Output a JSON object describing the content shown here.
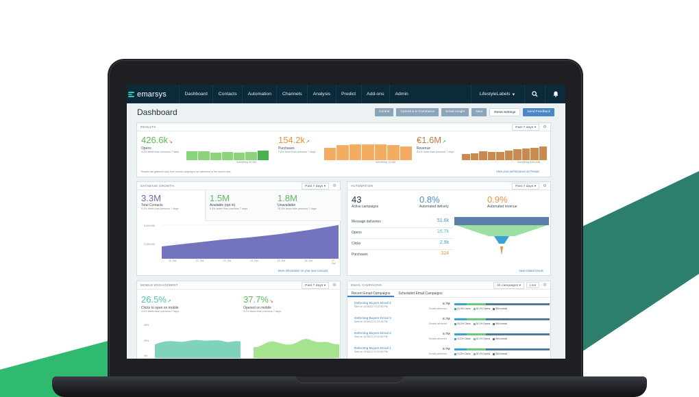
{
  "brand": {
    "name": "emarsys"
  },
  "nav": {
    "items": [
      "Dashboard",
      "Contacts",
      "Automation",
      "Channels",
      "Analysis",
      "Predict",
      "Add-ons",
      "Admin"
    ],
    "account": "LifestyleLabels"
  },
  "page": {
    "title": "Dashboard",
    "buttons": [
      "Central",
      "Central & E-Commerce",
      "Smart Insight",
      "Next",
      "Reset Settings",
      "Send Feedback"
    ]
  },
  "results": {
    "title": "RESULTS",
    "period": "Past 7 days",
    "opens": {
      "value": "426.6k",
      "label": "Opens",
      "sub": "4.2% fewer than previous 7 days",
      "note": "Something 40,284"
    },
    "purchases": {
      "value": "154.2k",
      "label": "Purchases",
      "sub": "7.5% more than previous 7 days",
      "note": "Something 13,438"
    },
    "revenue": {
      "value": "€1.6M",
      "label": "Revenue",
      "sub": "5.0% more than previous 7 days",
      "note": "Something €263,648"
    },
    "footnote": "Results are gathered only from emails campaigns are attributed to the launch date",
    "link": "View your performance as Trends",
    "bars": {
      "opens": [
        0.62,
        0.62,
        0.52,
        0.58,
        0.52,
        0.56,
        0.66
      ],
      "purchases": [
        0.74,
        0.92,
        0.96,
        0.94,
        0.94,
        0.9,
        0.82
      ],
      "revenue": [
        0.44,
        0.5,
        0.62,
        0.56,
        0.56,
        0.66,
        0.76,
        0.82,
        0.84,
        0.96
      ]
    }
  },
  "db_growth": {
    "title": "DATABASE GROWTH",
    "period": "Past 7 days",
    "total": {
      "value": "3.3M",
      "label": "Total Contacts",
      "sub": "5.1% more than previous 7 days"
    },
    "available": {
      "value": "1.5M",
      "label": "Available (opt in)",
      "sub": "9.5% fewer than previous 7 days"
    },
    "unavailable": {
      "value": "1.8M",
      "label": "Unavailable",
      "sub": "15.3% more than previous 7 days"
    },
    "y_ticks": [
      "3,410,000",
      "3,200,000"
    ],
    "x_ticks": [
      "11. Oct",
      "12. Oct",
      "13. Oct",
      "14. Oct",
      "15. Oct",
      "16. Oct",
      "17. Oct"
    ],
    "area_values": [
      0.3,
      0.38,
      0.46,
      0.52,
      0.6,
      0.7,
      0.82
    ],
    "link": "More information on your new contacts"
  },
  "automation": {
    "title": "AUTOMATION",
    "period": "Past 7 days",
    "active": {
      "value": "43",
      "label": "Active campaigns"
    },
    "delivery": {
      "value": "0.8%",
      "label": "Automated delivery"
    },
    "revenue": {
      "value": "0.9%",
      "label": "Automated revenue"
    },
    "funnel": [
      {
        "label": "Message deliveries",
        "value": "51.6k"
      },
      {
        "label": "Opens",
        "value": "16.7k"
      },
      {
        "label": "Clicks",
        "value": "2.9k"
      },
      {
        "label": "Purchases",
        "value": "324"
      }
    ],
    "link": "View related trends"
  },
  "mobile": {
    "title": "MOBILE ENGAGEMENT",
    "period": "Past 7 days",
    "clicks": {
      "value": "26.5%",
      "label": "Clicks to open on mobile",
      "sub": "3.4% fewer than previous 7 days"
    },
    "opened": {
      "value": "37.7%",
      "label": "Opened on mobile",
      "sub": "3.2% fewer than previous 7 days"
    },
    "y_ticks": [
      "40%",
      "20%",
      "0%"
    ]
  },
  "email_campaigns": {
    "title": "EMAIL CAMPAIGNS",
    "filter": "All campaigns",
    "view": "Live",
    "tabs": [
      "Recent Email Campaigns",
      "Scheduled Email Campaigns"
    ],
    "items": [
      {
        "name": "Defecting Buyers Email 4",
        "sent": "Sent on 10/18/12 07:22:55 PM",
        "value": "8.7M",
        "label": "Emails delivered",
        "clicks": "10.4% Clicks",
        "opens": "30.1% Opens",
        "unread": "Still unread"
      },
      {
        "name": "Defecting Buyers Email 3",
        "sent": "Sent on 10/18/12 07:22:55 PM",
        "value": "8.7M",
        "label": "Emails delivered",
        "clicks": "15.1% Clicks",
        "opens": "30.1% Opens",
        "unread": "Still unread"
      },
      {
        "name": "Defecting Buyers Email 2",
        "sent": "Sent on 10/18/12 07:22:55 PM",
        "value": "8.7M",
        "label": "Emails delivered",
        "clicks": "10.1% Clicks",
        "opens": "30.1% Opens",
        "unread": "Still unread"
      },
      {
        "name": "Defecting Buyers Email 1",
        "sent": "Sent on 10/18/12 07:22:55 PM",
        "value": "8.7M",
        "label": "Emails delivered",
        "clicks": "10.2% Clicks",
        "opens": "30.1% Opens",
        "unread": "Still unread"
      }
    ]
  },
  "colors": {
    "nav": "#0c2a3a",
    "green": "#5cb85c",
    "orange": "#e8913a",
    "brown": "#c07a3e",
    "purple": "#6a67b0",
    "teal": "#4ec4a5",
    "accent": "#3a7fc4",
    "bg_green": "#2fba6f",
    "bg_teal": "#2b7f6c"
  }
}
